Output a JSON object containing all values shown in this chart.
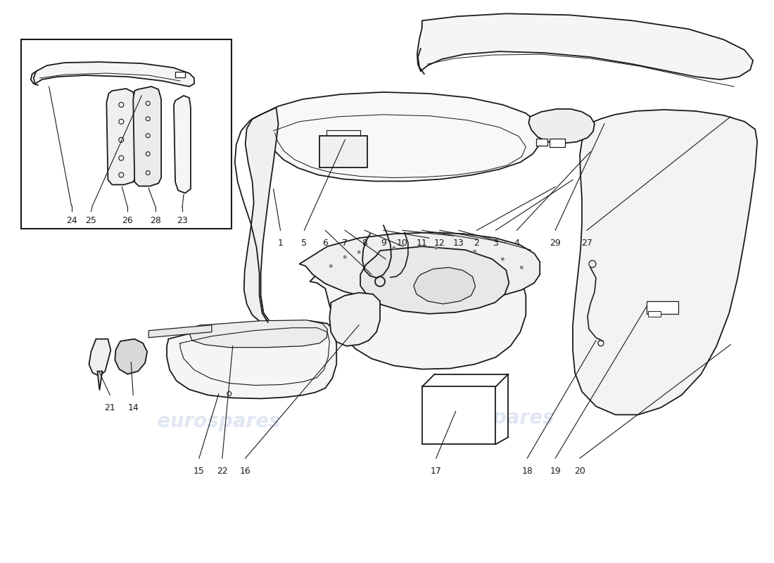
{
  "background_color": "#ffffff",
  "line_color": "#1a1a1a",
  "watermark_color": "#c8d4e8",
  "figure_width": 11.0,
  "figure_height": 8.0,
  "inset_labels": [
    [
      "24",
      100,
      307
    ],
    [
      "25",
      128,
      307
    ],
    [
      "26",
      180,
      307
    ],
    [
      "28",
      220,
      307
    ],
    [
      "23",
      258,
      307
    ]
  ],
  "top_labels": [
    [
      "1",
      398,
      335
    ],
    [
      "5",
      432,
      335
    ],
    [
      "6",
      462,
      335
    ],
    [
      "7",
      490,
      335
    ],
    [
      "8",
      518,
      335
    ],
    [
      "9",
      545,
      335
    ],
    [
      "10",
      572,
      335
    ],
    [
      "11",
      600,
      335
    ],
    [
      "12",
      625,
      335
    ],
    [
      "13",
      652,
      335
    ],
    [
      "2",
      678,
      335
    ],
    [
      "3",
      705,
      335
    ],
    [
      "4",
      735,
      335
    ],
    [
      "29",
      790,
      335
    ],
    [
      "27",
      835,
      335
    ]
  ],
  "bottom_labels": [
    [
      "21",
      155,
      570
    ],
    [
      "14",
      188,
      570
    ],
    [
      "15",
      282,
      660
    ],
    [
      "22",
      315,
      660
    ],
    [
      "16",
      348,
      660
    ],
    [
      "17",
      620,
      660
    ],
    [
      "18",
      750,
      660
    ],
    [
      "19",
      790,
      660
    ],
    [
      "20",
      825,
      660
    ]
  ]
}
